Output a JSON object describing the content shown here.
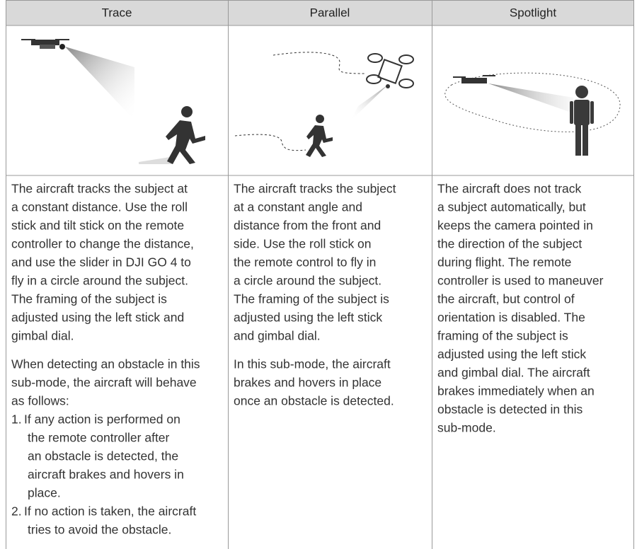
{
  "table": {
    "columns": [
      {
        "header": "Trace",
        "paragraphs": [
          [
            "The aircraft tracks the subject at",
            "a constant distance. Use the roll",
            "stick and tilt stick on the remote",
            "controller to change the distance,",
            "and use the slider in DJI GO 4 to",
            "fly in a circle around the subject.",
            "The framing of the subject is",
            "adjusted using the left stick and",
            "gimbal dial."
          ],
          [
            "When detecting an obstacle in this",
            "sub-mode, the aircraft will behave",
            "as follows:"
          ]
        ],
        "list": [
          {
            "marker": "1.",
            "lines": [
              "If any action is performed on",
              "the remote controller after",
              "an obstacle is detected, the",
              "aircraft brakes and hovers in",
              "place."
            ]
          },
          {
            "marker": "2.",
            "lines": [
              "If no action is taken, the aircraft",
              "tries to avoid the obstacle."
            ]
          }
        ]
      },
      {
        "header": "Parallel",
        "paragraphs": [
          [
            "The aircraft tracks the subject",
            "at a constant angle and",
            "distance from the front and",
            "side. Use the roll stick on",
            "the remote control to fly in",
            "a circle around the subject.",
            "The framing of the subject is",
            "adjusted using the left stick",
            "and gimbal dial."
          ],
          [
            "In this sub-mode, the aircraft",
            "brakes and hovers in place",
            "once an obstacle is detected."
          ]
        ],
        "list": []
      },
      {
        "header": "Spotlight",
        "paragraphs": [
          [
            "The aircraft does not track",
            "a subject automatically, but",
            "keeps the camera pointed in",
            "the direction of the subject",
            "during flight. The remote",
            "controller is used to maneuver",
            "the aircraft, but control of",
            "orientation is disabled. The",
            "framing of the subject is",
            "adjusted using the left stick",
            "and gimbal dial. The aircraft",
            "brakes immediately when an",
            "obstacle is detected in this",
            "sub-mode."
          ]
        ],
        "list": []
      }
    ]
  }
}
